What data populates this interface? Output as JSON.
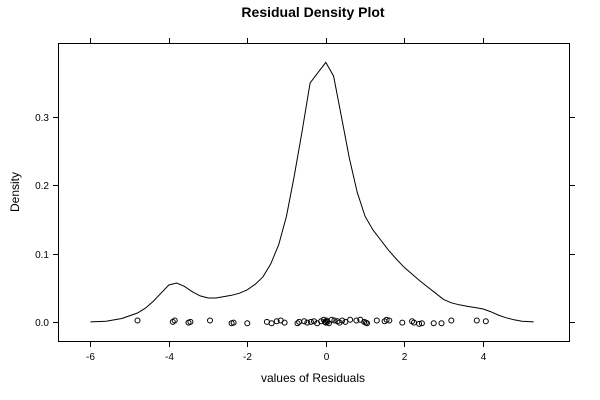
{
  "chart_data": {
    "type": "line",
    "title": "Residual Density Plot",
    "xlabel": "values of Residuals",
    "ylabel": "Density",
    "xlim": [
      -6.8,
      6.2
    ],
    "ylim": [
      -0.028,
      0.407
    ],
    "xticks": [
      -6,
      -4,
      -2,
      0,
      2,
      4
    ],
    "xtick_labels": [
      "-6",
      "-4",
      "-2",
      "0",
      "2",
      "4"
    ],
    "yticks": [
      0.0,
      0.1,
      0.2,
      0.3
    ],
    "ytick_labels": [
      "0.0",
      "0.1",
      "0.2",
      "0.3"
    ],
    "grid": false,
    "series": [
      {
        "type": "line",
        "x": [
          -6.0,
          -5.6,
          -5.2,
          -4.8,
          -4.6,
          -4.4,
          -4.2,
          -4.0,
          -3.8,
          -3.6,
          -3.4,
          -3.2,
          -3.0,
          -2.8,
          -2.6,
          -2.4,
          -2.2,
          -2.0,
          -1.8,
          -1.6,
          -1.4,
          -1.2,
          -1.0,
          -0.8,
          -0.6,
          -0.4,
          -0.2,
          0.0,
          0.2,
          0.4,
          0.6,
          0.8,
          1.0,
          1.2,
          1.4,
          1.6,
          1.8,
          2.0,
          2.2,
          2.4,
          2.6,
          2.8,
          3.0,
          3.2,
          3.4,
          3.6,
          3.8,
          4.0,
          4.2,
          4.4,
          4.6,
          4.8,
          5.0,
          5.3
        ],
        "y": [
          0.0,
          0.001,
          0.005,
          0.013,
          0.02,
          0.03,
          0.042,
          0.054,
          0.057,
          0.052,
          0.044,
          0.038,
          0.035,
          0.035,
          0.037,
          0.039,
          0.042,
          0.047,
          0.055,
          0.066,
          0.085,
          0.113,
          0.155,
          0.215,
          0.28,
          0.35,
          0.365,
          0.38,
          0.36,
          0.3,
          0.24,
          0.19,
          0.155,
          0.135,
          0.12,
          0.105,
          0.092,
          0.08,
          0.07,
          0.06,
          0.051,
          0.042,
          0.033,
          0.028,
          0.025,
          0.023,
          0.021,
          0.019,
          0.015,
          0.01,
          0.006,
          0.003,
          0.001,
          0.0
        ]
      },
      {
        "type": "scatter",
        "marker": "open-circle",
        "x": [
          -4.8,
          -3.9,
          -3.85,
          -3.5,
          -3.45,
          -2.95,
          -2.4,
          -2.35,
          -2.0,
          -1.5,
          -1.38,
          -1.25,
          -1.15,
          -1.05,
          -0.72,
          -0.68,
          -0.55,
          -0.47,
          -0.38,
          -0.3,
          -0.22,
          -0.12,
          -0.05,
          -0.02,
          0.0,
          0.02,
          0.04,
          0.08,
          0.15,
          0.22,
          0.3,
          0.35,
          0.42,
          0.5,
          0.62,
          0.78,
          0.88,
          0.98,
          1.02,
          1.05,
          1.3,
          1.5,
          1.55,
          1.62,
          1.95,
          2.2,
          2.25,
          2.38,
          2.45,
          2.75,
          2.95,
          3.2,
          3.85,
          4.08
        ],
        "y": [
          0.002,
          0.0,
          0.002,
          -0.001,
          0.0,
          0.002,
          -0.002,
          -0.001,
          -0.002,
          0.0,
          -0.002,
          0.001,
          0.002,
          -0.001,
          -0.002,
          0.0,
          0.001,
          -0.001,
          0.0,
          0.001,
          -0.002,
          0.001,
          0.003,
          0.0,
          -0.001,
          0.002,
          0.0,
          -0.002,
          0.003,
          0.002,
          0.001,
          -0.001,
          0.002,
          0.0,
          0.003,
          0.002,
          0.003,
          0.0,
          -0.001,
          -0.002,
          0.002,
          0.001,
          0.003,
          0.002,
          -0.001,
          0.001,
          -0.001,
          -0.003,
          -0.002,
          -0.002,
          -0.002,
          0.002,
          0.002,
          0.001
        ]
      }
    ]
  }
}
